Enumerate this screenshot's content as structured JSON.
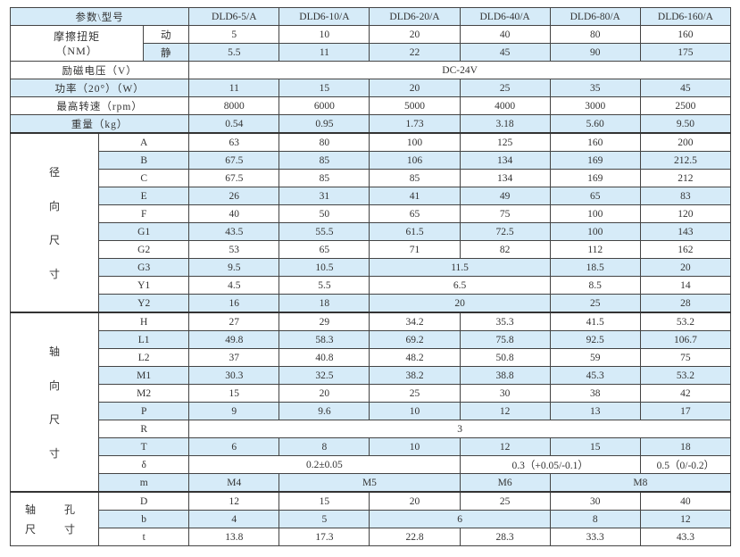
{
  "header": {
    "label": "参数\\型号",
    "models": [
      "DLD6-5/A",
      "DLD6-10/A",
      "DLD6-20/A",
      "DLD6-40/A",
      "DLD6-80/A",
      "DLD6-160/A"
    ]
  },
  "torque": {
    "label_line1": "摩擦扭矩",
    "label_line2": "（NM）",
    "rows": [
      {
        "sub": "动",
        "cells": [
          {
            "v": "5"
          },
          {
            "v": "10"
          },
          {
            "v": "20"
          },
          {
            "v": "40"
          },
          {
            "v": "80"
          },
          {
            "v": "160"
          }
        ]
      },
      {
        "sub": "静",
        "cells": [
          {
            "v": "5.5"
          },
          {
            "v": "11"
          },
          {
            "v": "22"
          },
          {
            "v": "45"
          },
          {
            "v": "90"
          },
          {
            "v": "175"
          }
        ]
      }
    ]
  },
  "general": [
    {
      "label": "励磁电压（V）",
      "cells": [
        {
          "v": "DC-24V",
          "span": 6
        }
      ]
    },
    {
      "label": "功率（20°）（W）",
      "cells": [
        {
          "v": "11"
        },
        {
          "v": "15"
        },
        {
          "v": "20"
        },
        {
          "v": "25"
        },
        {
          "v": "35"
        },
        {
          "v": "45"
        }
      ]
    },
    {
      "label": "最高转速（rpm）",
      "cells": [
        {
          "v": "8000"
        },
        {
          "v": "6000"
        },
        {
          "v": "5000"
        },
        {
          "v": "4000"
        },
        {
          "v": "3000"
        },
        {
          "v": "2500"
        }
      ]
    },
    {
      "label": "重量（kg）",
      "cells": [
        {
          "v": "0.54"
        },
        {
          "v": "0.95"
        },
        {
          "v": "1.73"
        },
        {
          "v": "3.18"
        },
        {
          "v": "5.60"
        },
        {
          "v": "9.50"
        }
      ]
    }
  ],
  "groups": [
    {
      "label": [
        "径",
        "向",
        "尺",
        "寸"
      ],
      "style": "group",
      "rows": [
        {
          "sub": "A",
          "cells": [
            {
              "v": "63"
            },
            {
              "v": "80"
            },
            {
              "v": "100"
            },
            {
              "v": "125"
            },
            {
              "v": "160"
            },
            {
              "v": "200"
            }
          ]
        },
        {
          "sub": "B",
          "cells": [
            {
              "v": "67.5"
            },
            {
              "v": "85"
            },
            {
              "v": "106"
            },
            {
              "v": "134"
            },
            {
              "v": "169"
            },
            {
              "v": "212.5"
            }
          ]
        },
        {
          "sub": "C",
          "cells": [
            {
              "v": "67.5"
            },
            {
              "v": "85"
            },
            {
              "v": "85"
            },
            {
              "v": "134"
            },
            {
              "v": "169"
            },
            {
              "v": "212"
            }
          ]
        },
        {
          "sub": "E",
          "cells": [
            {
              "v": "26"
            },
            {
              "v": "31"
            },
            {
              "v": "41"
            },
            {
              "v": "49"
            },
            {
              "v": "65"
            },
            {
              "v": "83"
            }
          ]
        },
        {
          "sub": "F",
          "cells": [
            {
              "v": "40"
            },
            {
              "v": "50"
            },
            {
              "v": "65"
            },
            {
              "v": "75"
            },
            {
              "v": "100"
            },
            {
              "v": "120"
            }
          ]
        },
        {
          "sub": "G1",
          "cells": [
            {
              "v": "43.5"
            },
            {
              "v": "55.5"
            },
            {
              "v": "61.5"
            },
            {
              "v": "72.5"
            },
            {
              "v": "100"
            },
            {
              "v": "143"
            }
          ]
        },
        {
          "sub": "G2",
          "cells": [
            {
              "v": "53"
            },
            {
              "v": "65"
            },
            {
              "v": "71"
            },
            {
              "v": "82"
            },
            {
              "v": "112"
            },
            {
              "v": "162"
            }
          ]
        },
        {
          "sub": "G3",
          "cells": [
            {
              "v": "9.5"
            },
            {
              "v": "10.5"
            },
            {
              "v": "11.5",
              "span": 2
            },
            {
              "v": "18.5"
            },
            {
              "v": "20"
            }
          ]
        },
        {
          "sub": "Y1",
          "cells": [
            {
              "v": "4.5"
            },
            {
              "v": "5.5"
            },
            {
              "v": "6.5",
              "span": 2
            },
            {
              "v": "8.5"
            },
            {
              "v": "14"
            }
          ]
        },
        {
          "sub": "Y2",
          "cells": [
            {
              "v": "16"
            },
            {
              "v": "18"
            },
            {
              "v": "20",
              "span": 2
            },
            {
              "v": "25"
            },
            {
              "v": "28"
            }
          ]
        }
      ]
    },
    {
      "label": [
        "轴",
        "向",
        "尺",
        "寸"
      ],
      "style": "group",
      "rows": [
        {
          "sub": "H",
          "cells": [
            {
              "v": "27"
            },
            {
              "v": "29"
            },
            {
              "v": "34.2"
            },
            {
              "v": "35.3"
            },
            {
              "v": "41.5"
            },
            {
              "v": "53.2"
            }
          ]
        },
        {
          "sub": "L1",
          "cells": [
            {
              "v": "49.8"
            },
            {
              "v": "58.3"
            },
            {
              "v": "69.2"
            },
            {
              "v": "75.8"
            },
            {
              "v": "92.5"
            },
            {
              "v": "106.7"
            }
          ]
        },
        {
          "sub": "L2",
          "cells": [
            {
              "v": "37"
            },
            {
              "v": "40.8"
            },
            {
              "v": "48.2"
            },
            {
              "v": "50.8"
            },
            {
              "v": "59"
            },
            {
              "v": "75"
            }
          ]
        },
        {
          "sub": "M1",
          "cells": [
            {
              "v": "30.3"
            },
            {
              "v": "32.5"
            },
            {
              "v": "38.2"
            },
            {
              "v": "38.8"
            },
            {
              "v": "45.3"
            },
            {
              "v": "53.2"
            }
          ]
        },
        {
          "sub": "M2",
          "cells": [
            {
              "v": "15"
            },
            {
              "v": "20"
            },
            {
              "v": "25"
            },
            {
              "v": "30"
            },
            {
              "v": "38"
            },
            {
              "v": "42"
            }
          ]
        },
        {
          "sub": "P",
          "cells": [
            {
              "v": "9"
            },
            {
              "v": "9.6"
            },
            {
              "v": "10"
            },
            {
              "v": "12"
            },
            {
              "v": "13"
            },
            {
              "v": "17"
            }
          ]
        },
        {
          "sub": "R",
          "cells": [
            {
              "v": "3",
              "span": 6
            }
          ]
        },
        {
          "sub": "T",
          "cells": [
            {
              "v": "6"
            },
            {
              "v": "8"
            },
            {
              "v": "10"
            },
            {
              "v": "12"
            },
            {
              "v": "15"
            },
            {
              "v": "18"
            }
          ]
        },
        {
          "sub": "δ",
          "cells": [
            {
              "v": "0.2±0.05",
              "span": 3
            },
            {
              "v": "0.3（+0.05/-0.1）",
              "span": 2
            },
            {
              "v": "0.5（0/-0.2）"
            }
          ]
        },
        {
          "sub": "m",
          "cells": [
            {
              "v": "M4"
            },
            {
              "v": "M5",
              "span": 2
            },
            {
              "v": "M6"
            },
            {
              "v": "M8",
              "span": 2
            }
          ]
        }
      ]
    },
    {
      "label": [
        "轴　孔",
        "尺　寸"
      ],
      "style": "shaft",
      "rows": [
        {
          "sub": "D",
          "cells": [
            {
              "v": "12"
            },
            {
              "v": "15"
            },
            {
              "v": "20"
            },
            {
              "v": "25"
            },
            {
              "v": "30"
            },
            {
              "v": "40"
            }
          ]
        },
        {
          "sub": "b",
          "cells": [
            {
              "v": "4"
            },
            {
              "v": "5"
            },
            {
              "v": "6",
              "span": 2
            },
            {
              "v": "8"
            },
            {
              "v": "12"
            }
          ]
        },
        {
          "sub": "t",
          "cells": [
            {
              "v": "13.8"
            },
            {
              "v": "17.3"
            },
            {
              "v": "22.8"
            },
            {
              "v": "28.3"
            },
            {
              "v": "33.3"
            },
            {
              "v": "43.3"
            }
          ]
        }
      ]
    }
  ]
}
